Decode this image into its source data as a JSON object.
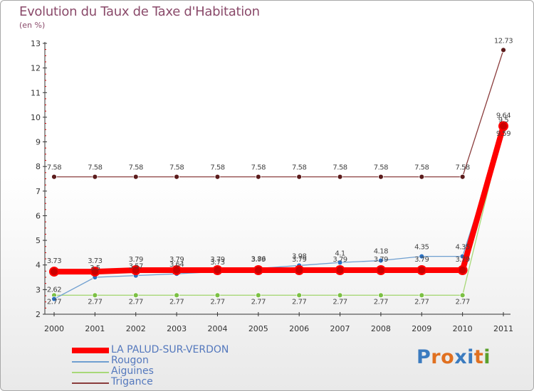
{
  "header": {
    "title": "Evolution du Taux de Taxe d'Habitation",
    "unit": "(en %)"
  },
  "logo": {
    "text": "Proxiti",
    "letters": [
      "P",
      "r",
      "o",
      "x",
      "i",
      "t",
      "i"
    ],
    "colors": [
      "#3b7bbf",
      "#e07020",
      "#e07020",
      "#3b7bbf",
      "#3b7bbf",
      "#e07020",
      "#5aa02c"
    ]
  },
  "colors": {
    "tick": "#cc0000",
    "grid": "#bbbbbb"
  },
  "chart_data": {
    "type": "line",
    "title": "Evolution du Taux de Taxe d'Habitation",
    "ylabel": "(en %)",
    "xlabel": "",
    "x": [
      "2000",
      "2001",
      "2002",
      "2003",
      "2004",
      "2005",
      "2006",
      "2007",
      "2008",
      "2009",
      "2010",
      "2011"
    ],
    "ylim": [
      2,
      13
    ],
    "yticks": [
      2,
      3,
      4,
      5,
      6,
      7,
      8,
      9,
      10,
      11,
      12,
      13
    ],
    "series": [
      {
        "name": "LA PALUD-SUR-VERDON",
        "color": "#ff0000",
        "marker": "#cc0000",
        "values": [
          3.73,
          3.73,
          3.79,
          3.79,
          3.79,
          3.79,
          3.79,
          3.79,
          3.79,
          3.79,
          3.79,
          9.64
        ],
        "labels": [
          "3.73",
          "3.73",
          "3.79",
          "3.79",
          "3.79",
          "3.79",
          "3.79",
          "3.79",
          "3.79",
          "3.79",
          "3.79",
          "9.64"
        ]
      },
      {
        "name": "Rougon",
        "color": "#6f9fd0",
        "marker": "#2f72c0",
        "values": [
          2.62,
          3.5,
          3.57,
          3.64,
          3.73,
          3.86,
          3.98,
          4.1,
          4.18,
          4.35,
          4.35,
          9.5
        ],
        "labels": [
          "2.62",
          "3.5",
          "3.57",
          "3.64",
          "3.73",
          "3.86",
          "3.98",
          "4.1",
          "4.18",
          "4.35",
          "4.35",
          "9.5"
        ]
      },
      {
        "name": "Aiguines",
        "color": "#a8d878",
        "marker": "#7bc043",
        "values": [
          2.77,
          2.77,
          2.77,
          2.77,
          2.77,
          2.77,
          2.77,
          2.77,
          2.77,
          2.77,
          2.77,
          9.59
        ],
        "labels": [
          "2.77",
          "2.77",
          "2.77",
          "2.77",
          "2.77",
          "2.77",
          "2.77",
          "2.77",
          "2.77",
          "2.77",
          "2.77",
          "9.59"
        ]
      },
      {
        "name": "Trigance",
        "color": "#8a3c3c",
        "marker": "#5c1c1c",
        "values": [
          7.58,
          7.58,
          7.58,
          7.58,
          7.58,
          7.58,
          7.58,
          7.58,
          7.58,
          7.58,
          7.58,
          12.73
        ],
        "labels": [
          "7.58",
          "7.58",
          "7.58",
          "7.58",
          "7.58",
          "7.58",
          "7.58",
          "7.58",
          "7.58",
          "7.58",
          "7.58",
          "12.73"
        ]
      }
    ],
    "legend": [
      "LA PALUD-SUR-VERDON",
      "Rougon",
      "Aiguines",
      "Trigance"
    ]
  }
}
